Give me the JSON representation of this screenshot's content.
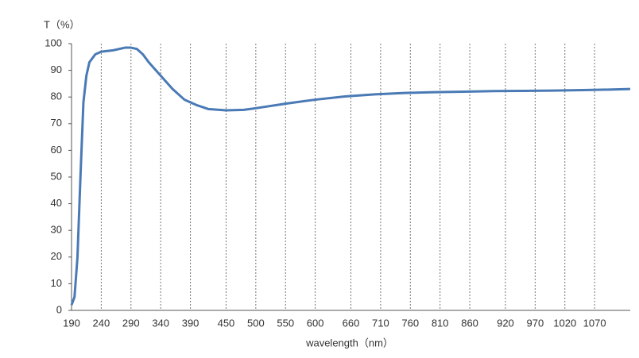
{
  "chart_data": {
    "type": "line",
    "y_label": "T（%）",
    "x_label": "wavelength（nm）",
    "x": [
      190,
      195,
      200,
      205,
      210,
      215,
      220,
      230,
      240,
      260,
      280,
      290,
      300,
      310,
      320,
      340,
      360,
      380,
      400,
      420,
      450,
      480,
      500,
      550,
      600,
      650,
      700,
      750,
      800,
      850,
      900,
      950,
      1000,
      1050,
      1100,
      1130
    ],
    "series": [
      {
        "color": "#4a7ab5",
        "values": [
          2,
          5,
          20,
          50,
          78,
          88,
          93,
          96,
          97,
          97.5,
          98.5,
          98.5,
          98,
          96,
          93,
          88,
          83,
          79,
          77,
          75.5,
          75,
          75.2,
          75.8,
          77.5,
          79,
          80.2,
          81,
          81.5,
          81.8,
          82,
          82.2,
          82.3,
          82.4,
          82.6,
          82.8,
          83
        ]
      }
    ],
    "xlim": [
      190,
      1130
    ],
    "xticks": [
      190,
      240,
      290,
      340,
      390,
      450,
      500,
      550,
      600,
      660,
      710,
      760,
      810,
      860,
      920,
      970,
      1020,
      1070
    ],
    "ylim": [
      0,
      100
    ],
    "yticks": [
      0,
      10,
      20,
      30,
      40,
      50,
      60,
      70,
      80,
      90,
      100
    ],
    "grid": true
  }
}
